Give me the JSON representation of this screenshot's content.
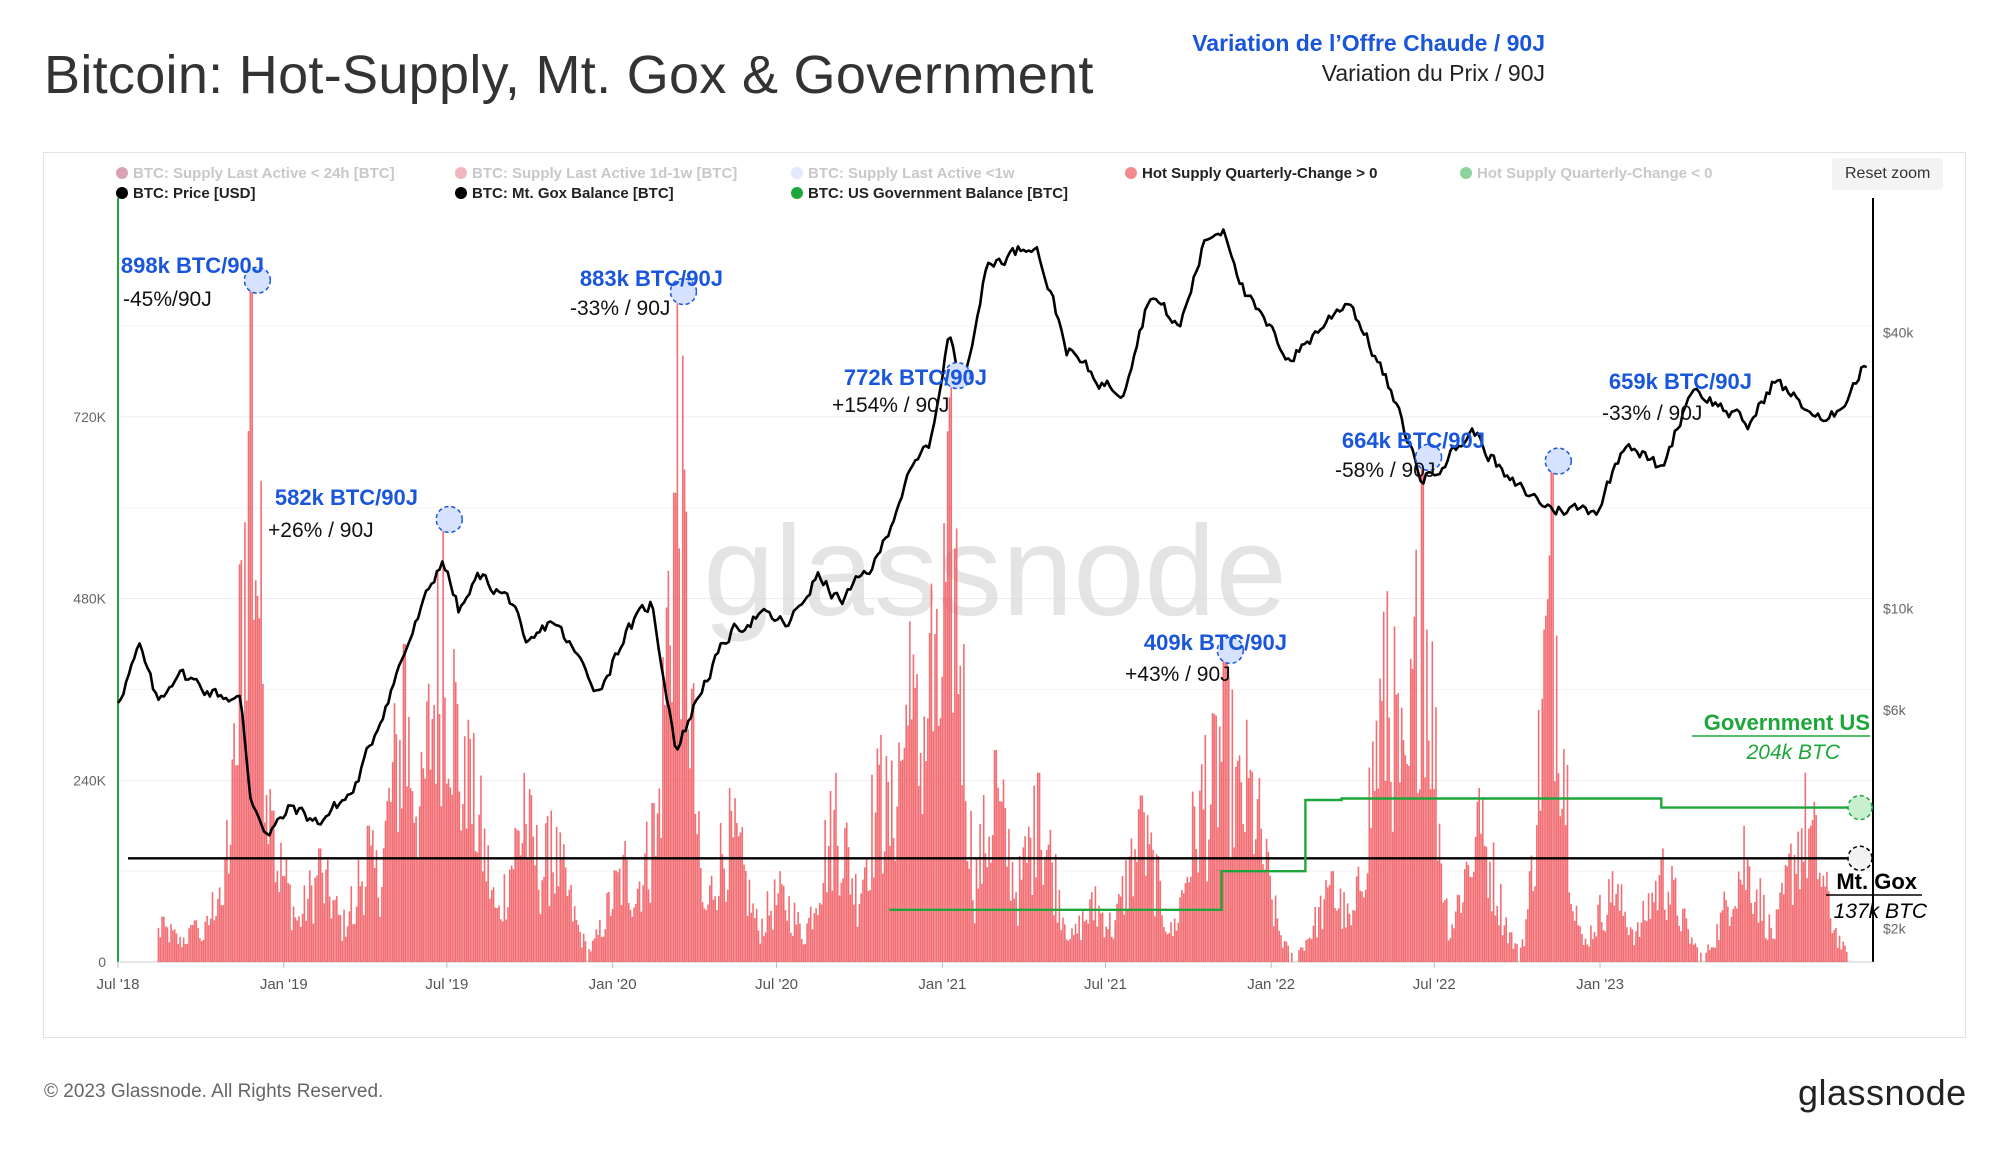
{
  "header": {
    "title": "Bitcoin: Hot-Supply, Mt. Gox & Government",
    "subtitle_1": "Variation de l’Offre Chaude / 90J",
    "subtitle_2": "Variation du Prix / 90J"
  },
  "toolbar": {
    "reset_zoom_label": "Reset zoom"
  },
  "watermark": "glassnode",
  "footer": {
    "copyright": "© 2023 Glassnode. All Rights Reserved.",
    "logo": "glassnode"
  },
  "colors": {
    "hot_supply": "#f0555a",
    "price": "#000000",
    "mtgox": "#000000",
    "government": "#1ea63a",
    "annotation_blue": "#1a56db",
    "legend_dim": "#c8c8c8"
  },
  "chart_data": {
    "type": "bar",
    "legend": [
      {
        "label": "BTC: Supply Last Active < 24h [BTC]",
        "color": "#b0456a",
        "active": false
      },
      {
        "label": "BTC: Supply Last Active 1d-1w [BTC]",
        "color": "#e06e7e",
        "active": false
      },
      {
        "label": "BTC: Supply Last Active <1w",
        "color": "#c7d3ff",
        "active": false
      },
      {
        "label": "Hot Supply Quarterly-Change > 0",
        "color": "#f48a8e",
        "active": true
      },
      {
        "label": "Hot Supply Quarterly-Change < 0",
        "color": "#1ea63a",
        "active": false
      },
      {
        "label": "BTC: Price [USD]",
        "color": "#000000",
        "active": true
      },
      {
        "label": "BTC: Mt. Gox Balance [BTC]",
        "color": "#000000",
        "active": true
      },
      {
        "label": "BTC: US Government Balance [BTC]",
        "color": "#1ea63a",
        "active": true
      }
    ],
    "x_ticks": [
      "Jul '18",
      "Jan '19",
      "Jul '19",
      "Jan '20",
      "Jul '20",
      "Jan '21",
      "Jul '21",
      "Jan '22",
      "Jul '22",
      "Jan '23"
    ],
    "x_range": [
      "2018-07-01",
      "2023-10-31"
    ],
    "y_left": {
      "ticks": [
        "0",
        "240K",
        "480K",
        "720K"
      ],
      "range": [
        0,
        1000000
      ]
    },
    "y_right": {
      "ticks": [
        "$2k",
        "$6k",
        "$10k",
        "$40k"
      ],
      "scale": "log"
    },
    "hot_supply_change_peaks": [
      {
        "date": "2018-08-20",
        "value": 60000
      },
      {
        "date": "2018-09-25",
        "value": 55000
      },
      {
        "date": "2018-10-25",
        "value": 75000
      },
      {
        "date": "2018-11-10",
        "value": 260000
      },
      {
        "date": "2018-11-26",
        "value": 898000
      },
      {
        "date": "2018-12-20",
        "value": 200000
      },
      {
        "date": "2019-02-10",
        "value": 150000
      },
      {
        "date": "2019-03-20",
        "value": 50000
      },
      {
        "date": "2019-04-05",
        "value": 180000
      },
      {
        "date": "2019-05-15",
        "value": 420000
      },
      {
        "date": "2019-06-27",
        "value": 582000
      },
      {
        "date": "2019-07-25",
        "value": 320000
      },
      {
        "date": "2019-09-25",
        "value": 250000
      },
      {
        "date": "2019-10-25",
        "value": 200000
      },
      {
        "date": "2020-01-15",
        "value": 160000
      },
      {
        "date": "2020-02-15",
        "value": 210000
      },
      {
        "date": "2020-03-13",
        "value": 883000
      },
      {
        "date": "2020-05-10",
        "value": 230000
      },
      {
        "date": "2020-07-05",
        "value": 120000
      },
      {
        "date": "2020-09-05",
        "value": 250000
      },
      {
        "date": "2020-10-25",
        "value": 300000
      },
      {
        "date": "2020-11-26",
        "value": 450000
      },
      {
        "date": "2020-12-20",
        "value": 500000
      },
      {
        "date": "2021-01-11",
        "value": 772000
      },
      {
        "date": "2021-03-01",
        "value": 280000
      },
      {
        "date": "2021-04-18",
        "value": 250000
      },
      {
        "date": "2021-06-20",
        "value": 100000
      },
      {
        "date": "2021-08-10",
        "value": 220000
      },
      {
        "date": "2021-10-20",
        "value": 300000
      },
      {
        "date": "2021-11-10",
        "value": 409000
      },
      {
        "date": "2021-12-05",
        "value": 320000
      },
      {
        "date": "2022-03-10",
        "value": 120000
      },
      {
        "date": "2022-05-10",
        "value": 490000
      },
      {
        "date": "2022-06-18",
        "value": 664000
      },
      {
        "date": "2022-08-20",
        "value": 230000
      },
      {
        "date": "2022-11-09",
        "value": 659000
      },
      {
        "date": "2023-01-15",
        "value": 120000
      },
      {
        "date": "2023-03-12",
        "value": 150000
      },
      {
        "date": "2023-06-10",
        "value": 180000
      },
      {
        "date": "2023-08-17",
        "value": 250000
      }
    ],
    "price_series": [
      [
        "2018-07-01",
        6300
      ],
      [
        "2018-07-25",
        8200
      ],
      [
        "2018-08-14",
        6200
      ],
      [
        "2018-09-05",
        7300
      ],
      [
        "2018-10-10",
        6600
      ],
      [
        "2018-11-14",
        6300
      ],
      [
        "2018-11-25",
        3900
      ],
      [
        "2018-12-15",
        3200
      ],
      [
        "2019-01-10",
        3700
      ],
      [
        "2019-02-07",
        3400
      ],
      [
        "2019-03-20",
        4000
      ],
      [
        "2019-04-10",
        5200
      ],
      [
        "2019-05-15",
        8000
      ],
      [
        "2019-06-26",
        12900
      ],
      [
        "2019-07-15",
        9800
      ],
      [
        "2019-08-06",
        11800
      ],
      [
        "2019-09-15",
        10200
      ],
      [
        "2019-09-26",
        8000
      ],
      [
        "2019-10-26",
        9500
      ],
      [
        "2019-12-17",
        6600
      ],
      [
        "2020-01-15",
        8800
      ],
      [
        "2020-02-13",
        10300
      ],
      [
        "2020-03-12",
        4900
      ],
      [
        "2020-04-10",
        6800
      ],
      [
        "2020-05-10",
        8800
      ],
      [
        "2020-06-10",
        9700
      ],
      [
        "2020-07-15",
        9200
      ],
      [
        "2020-08-15",
        11800
      ],
      [
        "2020-09-10",
        10300
      ],
      [
        "2020-10-21",
        12800
      ],
      [
        "2020-11-20",
        18600
      ],
      [
        "2020-12-20",
        23500
      ],
      [
        "2021-01-08",
        40000
      ],
      [
        "2021-01-22",
        30500
      ],
      [
        "2021-02-20",
        56000
      ],
      [
        "2021-03-15",
        59000
      ],
      [
        "2021-04-14",
        63500
      ],
      [
        "2021-05-19",
        37000
      ],
      [
        "2021-06-22",
        31500
      ],
      [
        "2021-07-20",
        29800
      ],
      [
        "2021-08-20",
        49000
      ],
      [
        "2021-09-21",
        40700
      ],
      [
        "2021-10-20",
        64000
      ],
      [
        "2021-11-10",
        68000
      ],
      [
        "2021-12-04",
        48000
      ],
      [
        "2022-01-22",
        35000
      ],
      [
        "2022-03-28",
        47500
      ],
      [
        "2022-05-10",
        31000
      ],
      [
        "2022-06-18",
        19000
      ],
      [
        "2022-08-14",
        24400
      ],
      [
        "2022-09-20",
        19000
      ],
      [
        "2022-11-09",
        16500
      ],
      [
        "2022-12-30",
        16500
      ],
      [
        "2023-01-30",
        23500
      ],
      [
        "2023-03-10",
        20000
      ],
      [
        "2023-04-13",
        30500
      ],
      [
        "2023-06-15",
        25000
      ],
      [
        "2023-07-13",
        31500
      ],
      [
        "2023-09-11",
        25000
      ],
      [
        "2023-10-24",
        34500
      ]
    ],
    "mtgox_series": [
      [
        "2018-07-01",
        137000
      ],
      [
        "2023-10-31",
        137000
      ]
    ],
    "government_series": [
      [
        "2020-11-03",
        69000
      ],
      [
        "2021-11-07",
        69000
      ],
      [
        "2021-11-07",
        120000
      ],
      [
        "2022-02-08",
        120000
      ],
      [
        "2022-02-08",
        214000
      ],
      [
        "2022-03-20",
        214000
      ],
      [
        "2022-03-20",
        216000
      ],
      [
        "2023-03-10",
        216000
      ],
      [
        "2023-03-10",
        204000
      ],
      [
        "2023-10-31",
        204000
      ]
    ],
    "annotations": [
      {
        "label": "898k BTC/90J",
        "sub": "-45%/90J",
        "date": "2018-11-26",
        "value": 898000
      },
      {
        "label": "582k BTC/90J",
        "sub": "+26% / 90J",
        "date": "2019-06-27",
        "value": 582000
      },
      {
        "label": "883k BTC/90J",
        "sub": "-33% / 90J",
        "date": "2020-03-13",
        "value": 883000
      },
      {
        "label": "772k BTC/90J",
        "sub": "+154% / 90J",
        "date": "2021-01-11",
        "value": 772000
      },
      {
        "label": "409k BTC/90J",
        "sub": "+43% / 90J",
        "date": "2021-11-10",
        "value": 409000
      },
      {
        "label": "664k BTC/90J",
        "sub": "-58% / 90J",
        "date": "2022-06-18",
        "value": 664000
      },
      {
        "label": "659k BTC/90J",
        "sub": "-33% / 90J",
        "date": "2022-11-09",
        "value": 659000
      }
    ],
    "end_labels": {
      "government": {
        "title": "Government US",
        "value": "204k BTC"
      },
      "mtgox": {
        "title": "Mt. Gox",
        "value": "137k BTC"
      }
    }
  }
}
